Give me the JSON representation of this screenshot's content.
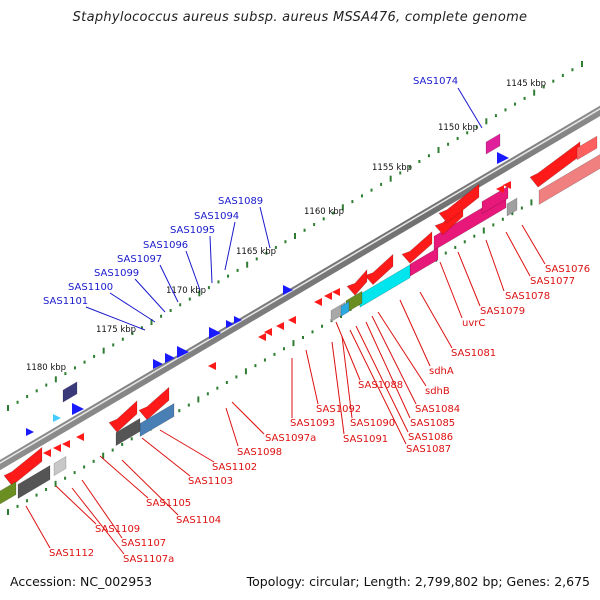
{
  "title": "Staphylococcus aureus subsp. aureus MSSA476, complete genome",
  "footer": {
    "accession": "Accession: NC_002953",
    "summary": "Topology: circular; Length: 2,799,802 bp; Genes: 2,675"
  },
  "colors": {
    "backbone": "#8a8a8a",
    "ruler_dot": "#2e7d32",
    "forward_cds": "#1a1aff",
    "reverse_cds": "#ff1a1a",
    "label_forward": "#1a1acc",
    "label_reverse": "#dd1111"
  },
  "ruler": [
    {
      "label": "1145 kbp"
    },
    {
      "label": "1150 kbp"
    },
    {
      "label": "1155 kbp"
    },
    {
      "label": "1160 kbp"
    },
    {
      "label": "1165 kbp"
    },
    {
      "label": "1170 kbp"
    },
    {
      "label": "1175 kbp"
    },
    {
      "label": "1180 kbp"
    }
  ],
  "forward_labels": [
    "SAS1074",
    "SAS1089",
    "SAS1094",
    "SAS1095",
    "SAS1096",
    "SAS1097",
    "SAS1099",
    "SAS1100",
    "SAS1101"
  ],
  "reverse_labels": [
    "SAS1076",
    "SAS1077",
    "SAS1078",
    "SAS1079",
    "uvrC",
    "SAS1081",
    "sdhA",
    "sdhB",
    "SAS1084",
    "SAS1085",
    "SAS1086",
    "SAS1087",
    "SAS1088",
    "SAS1090",
    "SAS1091",
    "SAS1092",
    "SAS1093",
    "SAS1097a",
    "SAS1098",
    "SAS1102",
    "SAS1103",
    "SAS1104",
    "SAS1105",
    "SAS1107",
    "SAS1107a",
    "SAS1109",
    "SAS1112"
  ]
}
